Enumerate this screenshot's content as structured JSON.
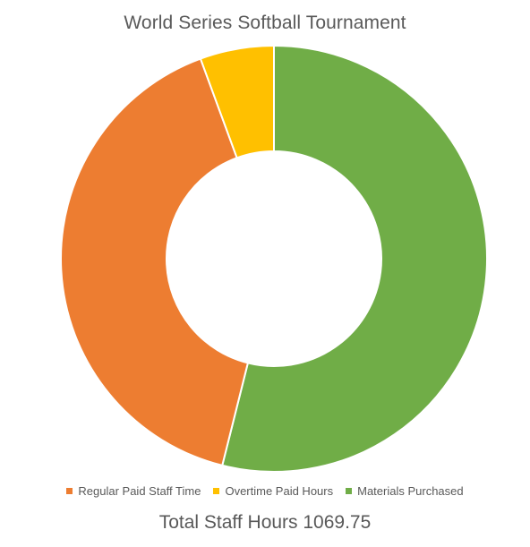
{
  "chart_data": {
    "type": "pie",
    "variant": "donut",
    "title": "World Series Softball Tournament",
    "categories": [
      "Regular Paid Staff Time",
      "Overtime Paid Hours",
      "Materials Purchased"
    ],
    "values": [
      40.5,
      5.6,
      53.9
    ],
    "value_unit": "percent of total (estimated)",
    "colors": [
      "#ED7D31",
      "#FFC000",
      "#70AD47"
    ],
    "legend_position": "bottom",
    "caption": "Total Staff Hours 1069.75"
  }
}
